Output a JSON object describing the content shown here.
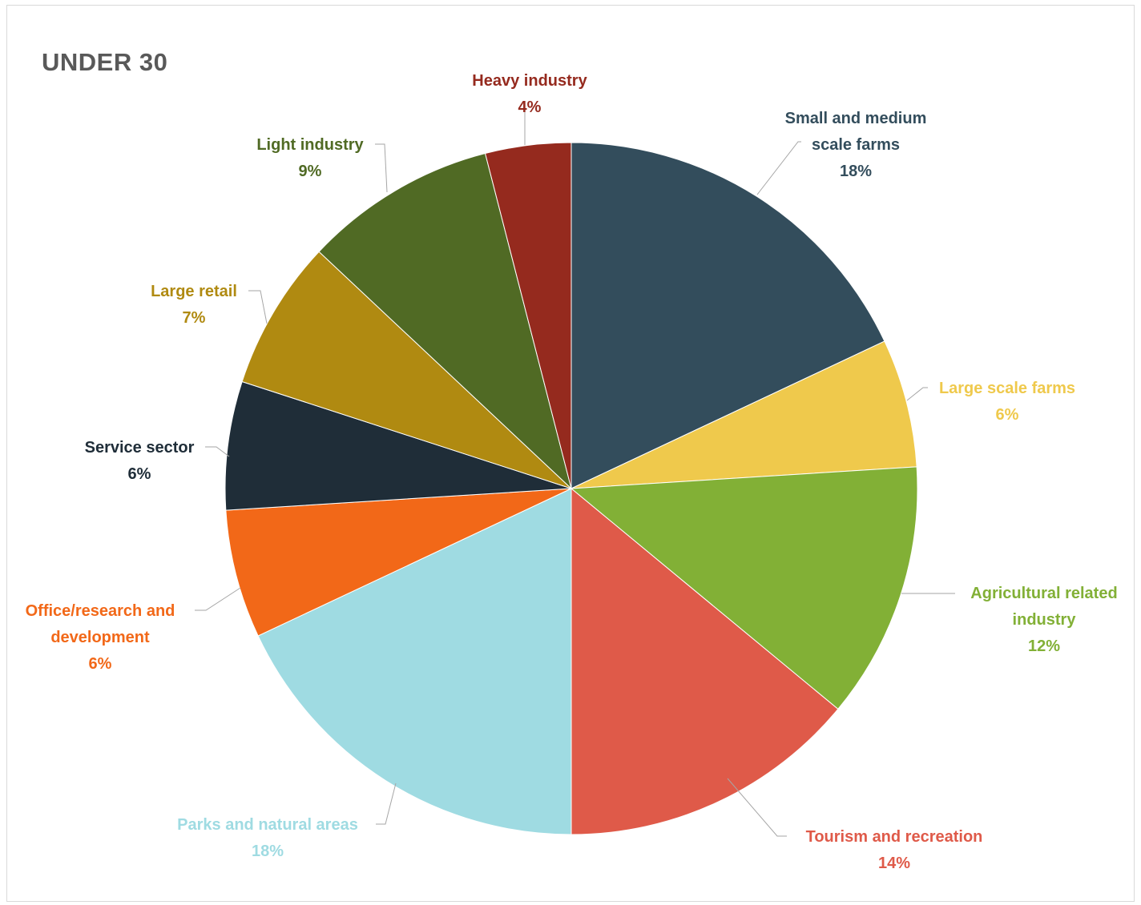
{
  "chart_data": {
    "type": "pie",
    "title": "UNDER 30",
    "slices": [
      {
        "label": "Small and medium scale farms",
        "label_lines": [
          "Small and medium",
          "scale farms"
        ],
        "pct_label": "18%",
        "value": 18,
        "color": "#334d5c"
      },
      {
        "label": "Large scale farms",
        "label_lines": [
          "Large scale farms"
        ],
        "pct_label": "6%",
        "value": 6,
        "color": "#efc94c"
      },
      {
        "label": "Agricultural related industry",
        "label_lines": [
          "Agricultural related",
          "industry"
        ],
        "pct_label": "12%",
        "value": 12,
        "color": "#82b036"
      },
      {
        "label": "Tourism and recreation",
        "label_lines": [
          "Tourism and recreation"
        ],
        "pct_label": "14%",
        "value": 14,
        "color": "#df5a49"
      },
      {
        "label": "Parks and natural areas",
        "label_lines": [
          "Parks and natural areas"
        ],
        "pct_label": "18%",
        "value": 18,
        "color": "#9fdbe2"
      },
      {
        "label": "Office/research and development",
        "label_lines": [
          "Office/research and",
          "development"
        ],
        "pct_label": "6%",
        "value": 6,
        "color": "#f26818"
      },
      {
        "label": "Service sector",
        "label_lines": [
          "Service sector"
        ],
        "pct_label": "6%",
        "value": 6,
        "color": "#1f2d38"
      },
      {
        "label": "Large retail",
        "label_lines": [
          "Large retail"
        ],
        "pct_label": "7%",
        "value": 7,
        "color": "#b08a11"
      },
      {
        "label": "Light industry",
        "label_lines": [
          "Light industry"
        ],
        "pct_label": "9%",
        "value": 9,
        "color": "#506a24"
      },
      {
        "label": "Heavy industry",
        "label_lines": [
          "Heavy industry"
        ],
        "pct_label": "4%",
        "value": 4,
        "color": "#952a1e"
      }
    ],
    "start_angle": "12 o'clock",
    "direction": "clockwise",
    "legend": "none (data labels with leader lines)"
  },
  "colors": {
    "leader_line": "#a6a6a6",
    "title": "#595959",
    "border": "#d9d9d9"
  }
}
